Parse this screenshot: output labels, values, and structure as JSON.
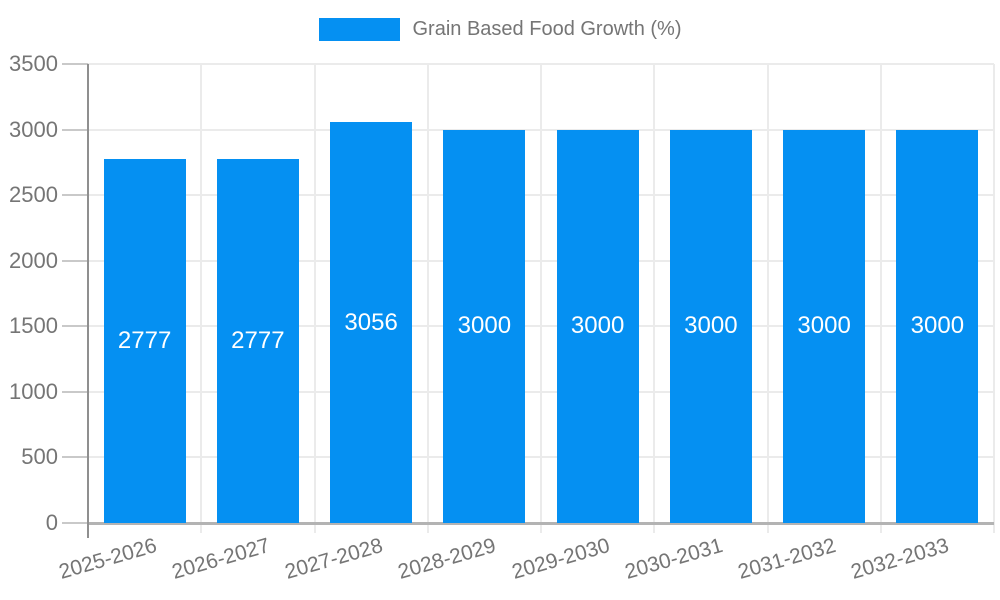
{
  "chart_data": {
    "type": "bar",
    "title": "",
    "legend": "Grain Based Food Growth (%)",
    "legend_position": "top",
    "categories": [
      "2025-2026",
      "2026-2027",
      "2027-2028",
      "2028-2029",
      "2029-2030",
      "2030-2031",
      "2031-2032",
      "2032-2033"
    ],
    "series": [
      {
        "name": "Grain Based Food Growth (%)",
        "values": [
          2777,
          2777,
          3056,
          3000,
          3000,
          3000,
          3000,
          3000
        ]
      }
    ],
    "value_labels": [
      "2777",
      "2777",
      "3056",
      "3000",
      "3000",
      "3000",
      "3000",
      "3000"
    ],
    "xlabel": "",
    "ylabel": "",
    "ylim": [
      0,
      3500
    ],
    "yticks": [
      0,
      500,
      1000,
      1500,
      2000,
      2500,
      3000,
      3500
    ],
    "ytick_labels": [
      "0",
      "500",
      "1000",
      "1500",
      "2000",
      "2500",
      "3000",
      "3500"
    ],
    "grid": true,
    "colors": {
      "bar": "#0590f2",
      "value_text": "#ffffff",
      "axis_text": "#757575",
      "gridline": "#ebebeb",
      "baseline": "#b3b3b3",
      "axis_line": "#8f8f8f",
      "tick": "#c9c9c9",
      "background": "#ffffff"
    }
  }
}
